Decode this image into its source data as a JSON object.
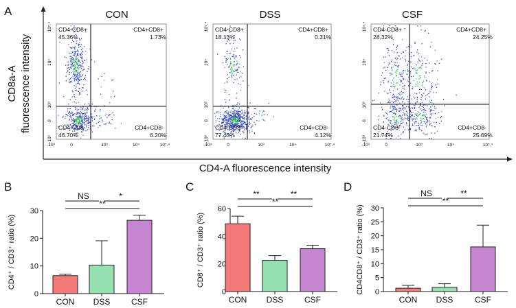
{
  "panel_letters": [
    "A",
    "B",
    "C",
    "D"
  ],
  "panel_a": {
    "ylabel_line1": "CD8a-A",
    "ylabel_line2": "fluorescence intensity",
    "xlabel": "CD4-A fluorescence intensity"
  },
  "chart_data": [
    {
      "type": "scatter",
      "title": "CON",
      "x_ticks": [
        "-10³",
        "0",
        "10³",
        "10⁴",
        "10⁵.⁴"
      ],
      "y_ticks": [
        "10⁵.⁴",
        "10⁴",
        "10³",
        "0",
        "-10³"
      ],
      "quadrants": {
        "top_left": {
          "label": "CD4-CD8+",
          "percent": "45.36%"
        },
        "top_right": {
          "label": "CD4+CD8+",
          "percent": "1.73%"
        },
        "bottom_left": {
          "label": "CD4-CD8-",
          "percent": "46.70%"
        },
        "bottom_right": {
          "label": "CD4+CD8-",
          "percent": "6.20%"
        }
      }
    },
    {
      "type": "scatter",
      "title": "DSS",
      "x_ticks": [
        "-10³",
        "0",
        "10³",
        "10⁴",
        "10⁵.⁴"
      ],
      "y_ticks": [
        "10⁵.⁴",
        "10⁴",
        "10³",
        "0",
        "-10³"
      ],
      "quadrants": {
        "top_left": {
          "label": "CD4-CD8+",
          "percent": "18.13%"
        },
        "top_right": {
          "label": "CD4+CD8+",
          "percent": "0.31%"
        },
        "bottom_left": {
          "label": "CD4-CD8-",
          "percent": "77.43%"
        },
        "bottom_right": {
          "label": "CD4+CD8-",
          "percent": "4.12%"
        }
      }
    },
    {
      "type": "scatter",
      "title": "CSF",
      "x_ticks": [
        "-10³",
        "0",
        "10³",
        "10⁴",
        "10⁵.⁴"
      ],
      "y_ticks": [
        "10⁵.⁴",
        "10⁴",
        "10³",
        "0",
        "-10³"
      ],
      "quadrants": {
        "top_left": {
          "label": "CD4-CD8+",
          "percent": "28.32%"
        },
        "top_right": {
          "label": "CD4+CD8+",
          "percent": "24.25%"
        },
        "bottom_left": {
          "label": "CD4-CD8-",
          "percent": "21.74%"
        },
        "bottom_right": {
          "label": "CD4+CD8-",
          "percent": "25.69%"
        }
      }
    },
    {
      "type": "bar",
      "panel": "B",
      "categories": [
        "CON",
        "DSS",
        "CSF"
      ],
      "values": [
        6.5,
        10.3,
        26.5
      ],
      "errors": [
        0.5,
        8.8,
        1.8
      ],
      "colors": [
        "#f47a79",
        "#97e0b0",
        "#c585d0"
      ],
      "ylabel": "CD4⁺ / CD3⁺ ratio (%)",
      "ylim": [
        0,
        30
      ],
      "yticks": [
        0,
        10,
        20,
        30
      ],
      "significance": [
        {
          "from": "CON",
          "to": "DSS",
          "label": "NS"
        },
        {
          "from": "DSS",
          "to": "CSF",
          "label": "*"
        },
        {
          "from": "CON",
          "to": "CSF",
          "label": "**"
        }
      ]
    },
    {
      "type": "bar",
      "panel": "C",
      "categories": [
        "CON",
        "DSS",
        "CSF"
      ],
      "values": [
        49,
        22.5,
        31
      ],
      "errors": [
        5.5,
        3.5,
        2.5
      ],
      "colors": [
        "#f47a79",
        "#97e0b0",
        "#c585d0"
      ],
      "ylabel": "CD8⁺ / CD3⁺ ratio (%)",
      "ylim": [
        0,
        60
      ],
      "yticks": [
        0,
        20,
        40,
        60
      ],
      "significance": [
        {
          "from": "CON",
          "to": "DSS",
          "label": "**"
        },
        {
          "from": "DSS",
          "to": "CSF",
          "label": "**"
        },
        {
          "from": "CON",
          "to": "CSF",
          "label": "**"
        }
      ]
    },
    {
      "type": "bar",
      "panel": "D",
      "categories": [
        "CON",
        "DSS",
        "CSF"
      ],
      "values": [
        1.2,
        1.5,
        16
      ],
      "errors": [
        1.0,
        1.3,
        7.8
      ],
      "colors": [
        "#f47a79",
        "#97e0b0",
        "#c585d0"
      ],
      "ylabel": "CD4CD8⁺ / CD3⁺ ratio (%)",
      "ylim": [
        0,
        30
      ],
      "yticks": [
        0,
        5,
        10,
        15,
        20,
        25,
        30
      ],
      "significance": [
        {
          "from": "CON",
          "to": "DSS",
          "label": "NS"
        },
        {
          "from": "DSS",
          "to": "CSF",
          "label": "**"
        },
        {
          "from": "CON",
          "to": "CSF",
          "label": "**"
        }
      ]
    }
  ]
}
